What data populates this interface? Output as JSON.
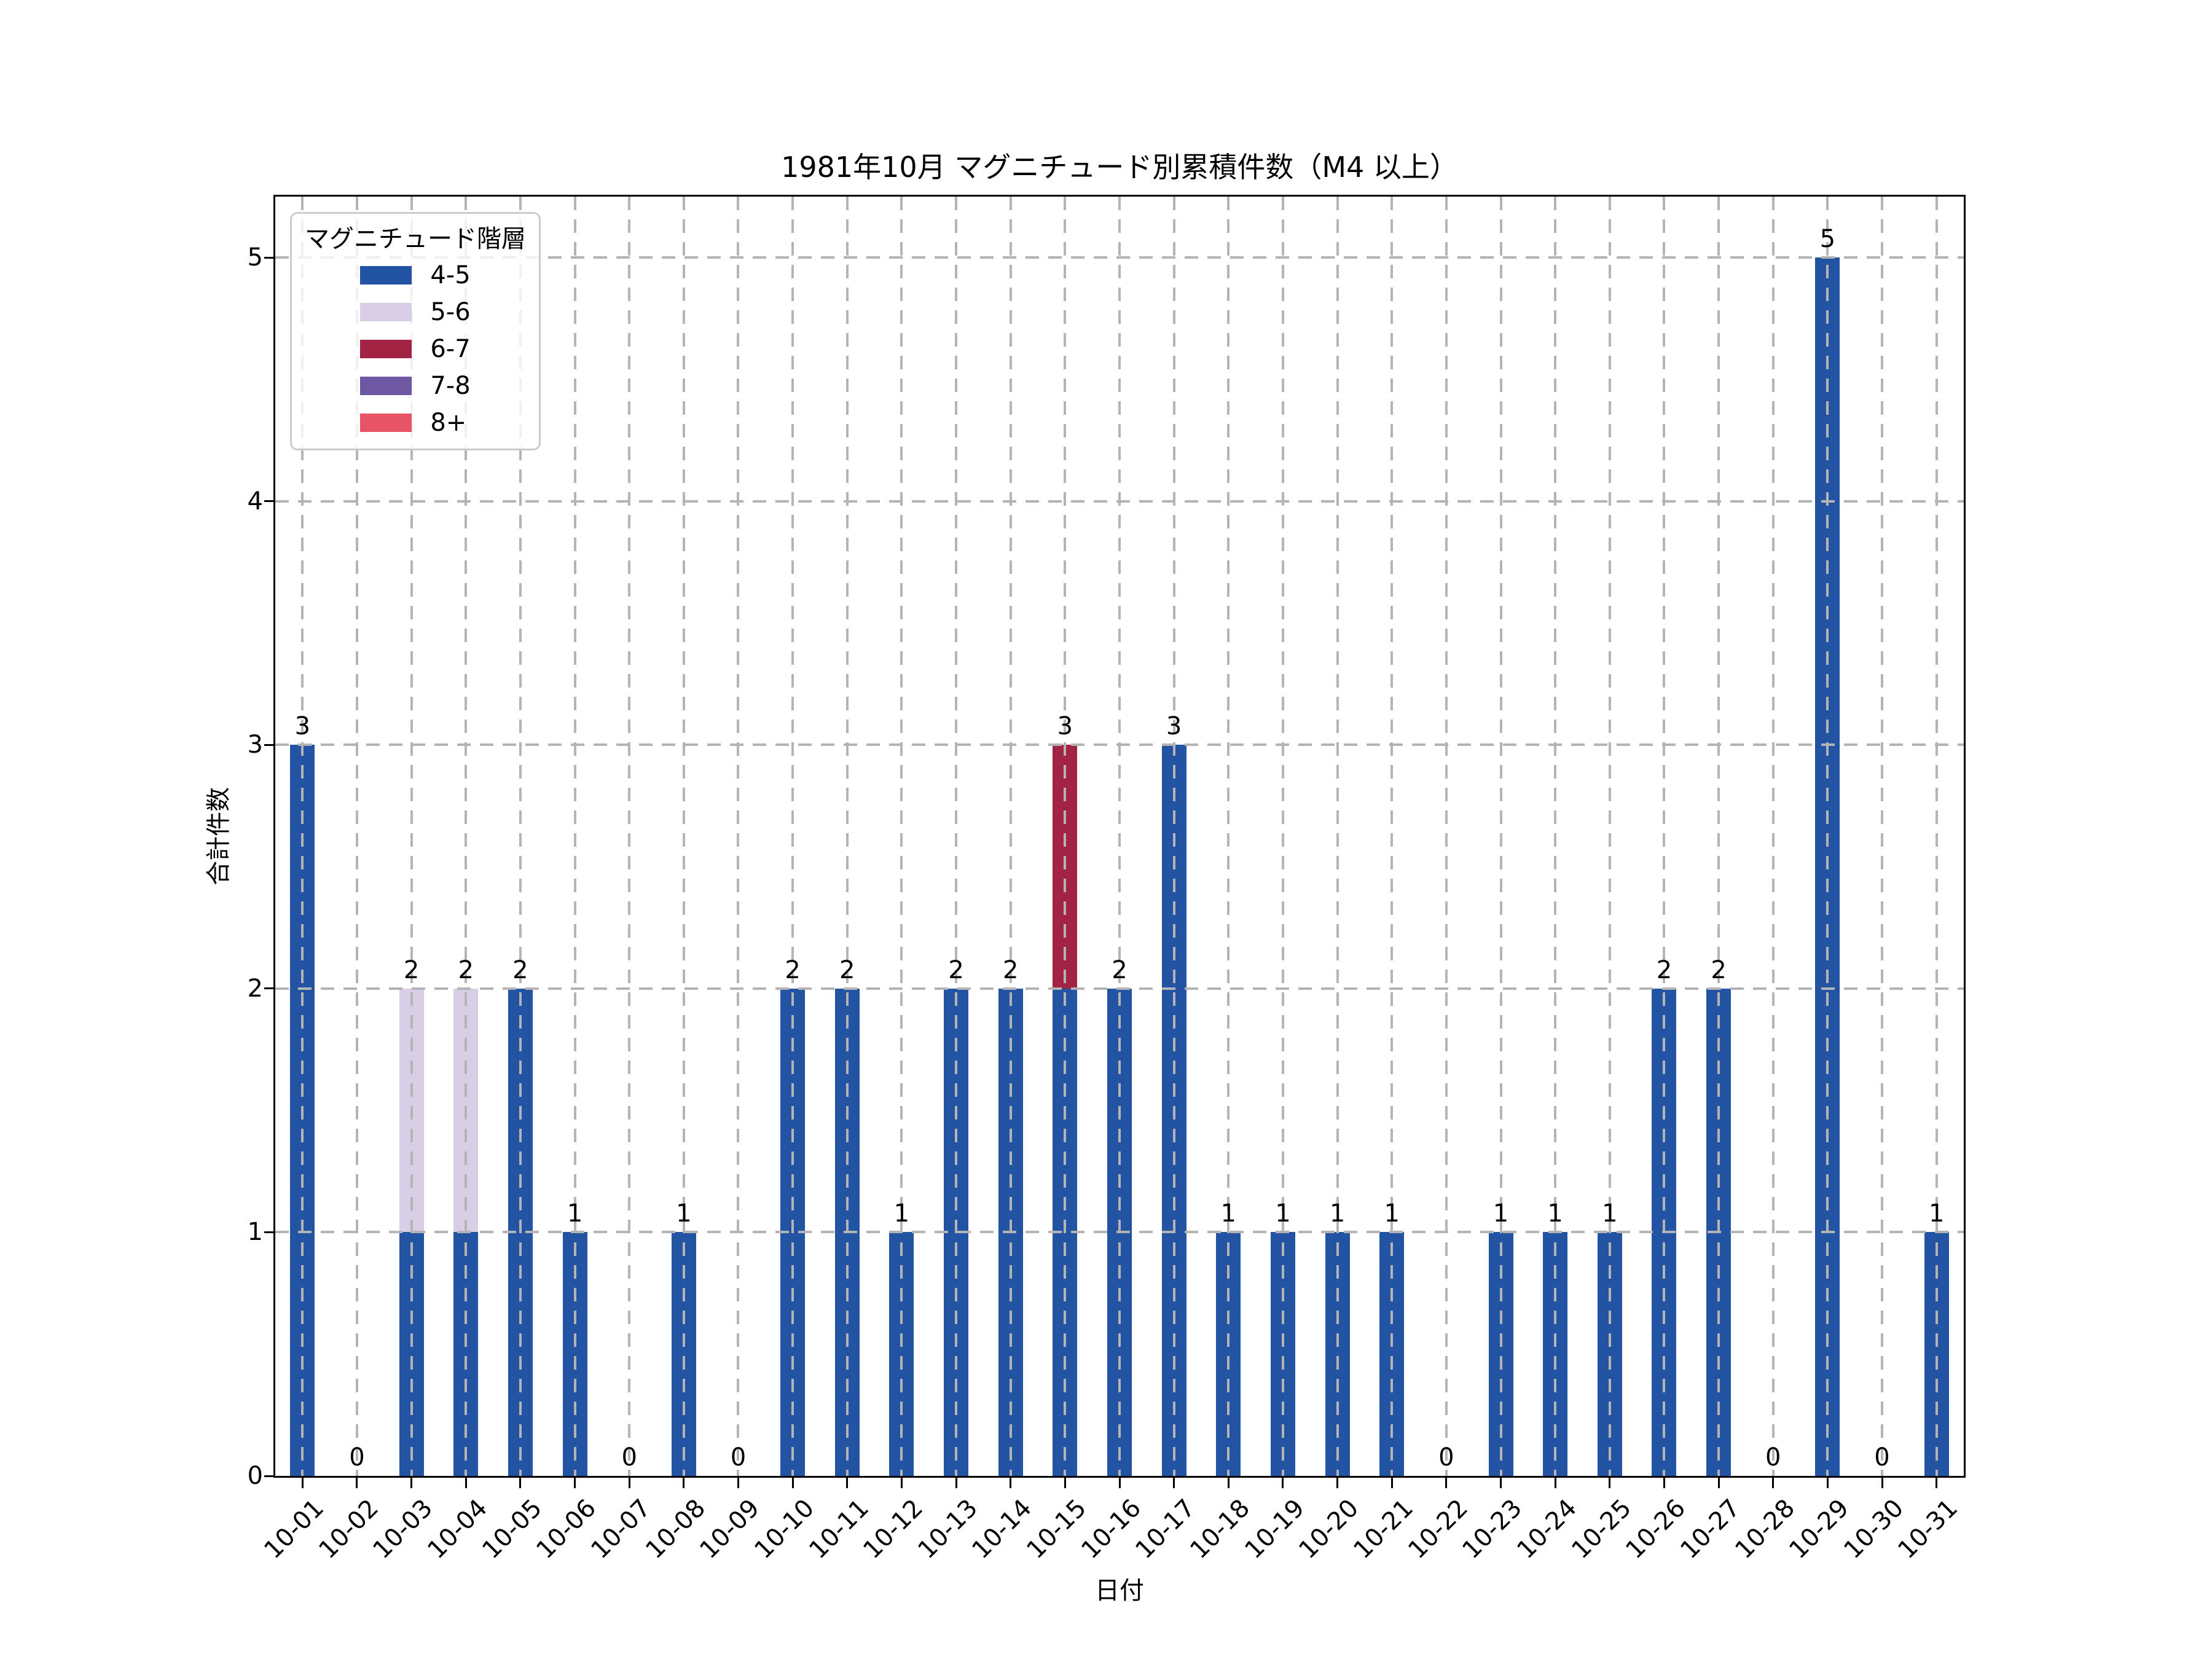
{
  "title": "1981年10月 マグニチュード別累積件数（M4 以上）",
  "axes": {
    "xlabel": "日付",
    "ylabel": "合計件数",
    "yticks": [
      0,
      1,
      2,
      3,
      4,
      5
    ],
    "ylim": [
      0,
      5.25
    ]
  },
  "legend": {
    "title": "マグニチュード階層",
    "position": "upper left",
    "items": [
      {
        "label": "4-5",
        "color": "#2254a3"
      },
      {
        "label": "5-6",
        "color": "#d8cfe6"
      },
      {
        "label": "6-7",
        "color": "#a32345"
      },
      {
        "label": "7-8",
        "color": "#6f58a3"
      },
      {
        "label": "8+",
        "color": "#e65465"
      }
    ]
  },
  "styles": {
    "grid_color": "#b4b4b4",
    "grid_style": "dashed",
    "grid_above_bars": true,
    "spine_color": "#000000",
    "background": "#ffffff"
  },
  "chart_data": {
    "type": "bar",
    "stacked": true,
    "title": "1981年10月 マグニチュード別累積件数（M4 以上）",
    "xlabel": "日付",
    "ylabel": "合計件数",
    "ylim": [
      0,
      5.25
    ],
    "grid": "both axes, dashed, drawn above bars",
    "legend_position": "upper left",
    "bar_value_labels_shown": true,
    "categories": [
      "10-01",
      "10-02",
      "10-03",
      "10-04",
      "10-05",
      "10-06",
      "10-07",
      "10-08",
      "10-09",
      "10-10",
      "10-11",
      "10-12",
      "10-13",
      "10-14",
      "10-15",
      "10-16",
      "10-17",
      "10-18",
      "10-19",
      "10-20",
      "10-21",
      "10-22",
      "10-23",
      "10-24",
      "10-25",
      "10-26",
      "10-27",
      "10-28",
      "10-29",
      "10-30",
      "10-31"
    ],
    "series": [
      {
        "name": "4-5",
        "color": "#2254a3",
        "values": [
          3,
          0,
          1,
          1,
          2,
          1,
          0,
          1,
          0,
          2,
          2,
          1,
          2,
          2,
          2,
          2,
          3,
          1,
          1,
          1,
          1,
          0,
          1,
          1,
          1,
          2,
          2,
          0,
          5,
          0,
          1
        ]
      },
      {
        "name": "5-6",
        "color": "#d8cfe6",
        "values": [
          0,
          0,
          1,
          1,
          0,
          0,
          0,
          0,
          0,
          0,
          0,
          0,
          0,
          0,
          0,
          0,
          0,
          0,
          0,
          0,
          0,
          0,
          0,
          0,
          0,
          0,
          0,
          0,
          0,
          0,
          0
        ]
      },
      {
        "name": "6-7",
        "color": "#a32345",
        "values": [
          0,
          0,
          0,
          0,
          0,
          0,
          0,
          0,
          0,
          0,
          0,
          0,
          0,
          0,
          1,
          0,
          0,
          0,
          0,
          0,
          0,
          0,
          0,
          0,
          0,
          0,
          0,
          0,
          0,
          0,
          0
        ]
      },
      {
        "name": "7-8",
        "color": "#6f58a3",
        "values": [
          0,
          0,
          0,
          0,
          0,
          0,
          0,
          0,
          0,
          0,
          0,
          0,
          0,
          0,
          0,
          0,
          0,
          0,
          0,
          0,
          0,
          0,
          0,
          0,
          0,
          0,
          0,
          0,
          0,
          0,
          0
        ]
      },
      {
        "name": "8+",
        "color": "#e65465",
        "values": [
          0,
          0,
          0,
          0,
          0,
          0,
          0,
          0,
          0,
          0,
          0,
          0,
          0,
          0,
          0,
          0,
          0,
          0,
          0,
          0,
          0,
          0,
          0,
          0,
          0,
          0,
          0,
          0,
          0,
          0,
          0
        ]
      }
    ],
    "totals": [
      3,
      0,
      2,
      2,
      2,
      1,
      0,
      1,
      0,
      2,
      2,
      1,
      2,
      2,
      3,
      2,
      3,
      1,
      1,
      1,
      1,
      0,
      1,
      1,
      1,
      2,
      2,
      0,
      5,
      0,
      1
    ]
  }
}
